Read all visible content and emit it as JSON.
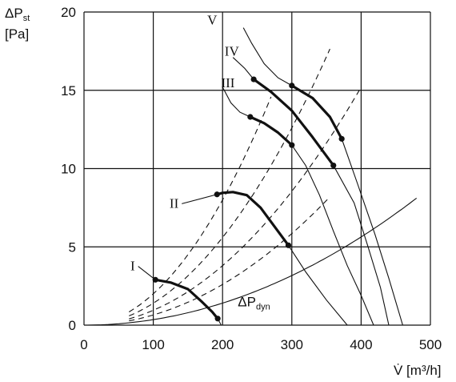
{
  "chart_data": {
    "type": "line",
    "title": "",
    "ylabel": "ΔP",
    "ylabel_sub": "st",
    "ylabel_unit": "[Pa]",
    "xlabel": "V̇ [m³/h]",
    "xlim": [
      0,
      500
    ],
    "ylim": [
      0,
      20
    ],
    "x_ticks": [
      0,
      100,
      200,
      300,
      400,
      500
    ],
    "y_ticks": [
      0,
      5,
      10,
      15,
      20
    ],
    "x_tick_labels": [
      "0",
      "100",
      "200",
      "300",
      "400",
      "500"
    ],
    "y_tick_labels": [
      "0",
      "5",
      "10",
      "15",
      "20"
    ],
    "grid": true,
    "fan_curves": [
      {
        "name": "I",
        "points": [
          [
            103,
            2.9
          ],
          [
            125,
            2.72
          ],
          [
            150,
            2.3
          ],
          [
            170,
            1.5
          ],
          [
            185,
            0.85
          ],
          [
            193,
            0.42
          ],
          [
            198,
            0
          ]
        ],
        "operating_range": [
          [
            103,
            2.9
          ],
          [
            125,
            2.72
          ],
          [
            150,
            2.3
          ],
          [
            170,
            1.5
          ],
          [
            185,
            0.85
          ],
          [
            193,
            0.42
          ]
        ],
        "markers": [
          [
            103,
            2.9
          ],
          [
            193,
            0.42
          ]
        ],
        "label_pos": [
          62,
          3.5
        ]
      },
      {
        "name": "II",
        "points": [
          [
            192,
            8.35
          ],
          [
            200,
            8.45
          ],
          [
            215,
            8.5
          ],
          [
            235,
            8.3
          ],
          [
            255,
            7.5
          ],
          [
            275,
            6.3
          ],
          [
            295,
            5.1
          ],
          [
            320,
            3.4
          ],
          [
            350,
            1.6
          ],
          [
            380,
            0
          ]
        ],
        "operating_range": [
          [
            192,
            8.35
          ],
          [
            200,
            8.45
          ],
          [
            215,
            8.5
          ],
          [
            235,
            8.3
          ],
          [
            255,
            7.5
          ],
          [
            275,
            6.3
          ],
          [
            295,
            5.1
          ]
        ],
        "markers": [
          [
            192,
            8.35
          ],
          [
            295,
            5.1
          ]
        ],
        "label_pos": [
          125,
          7.5
        ]
      },
      {
        "name": "III",
        "points": [
          [
            200,
            15.2
          ],
          [
            212,
            14.2
          ],
          [
            225,
            13.6
          ],
          [
            240,
            13.3
          ],
          [
            260,
            12.9
          ],
          [
            280,
            12.3
          ],
          [
            300,
            11.5
          ],
          [
            320,
            10.2
          ],
          [
            340,
            8.3
          ],
          [
            360,
            6.0
          ],
          [
            380,
            3.8
          ],
          [
            400,
            1.9
          ],
          [
            418,
            0
          ]
        ],
        "operating_range": [
          [
            240,
            13.3
          ],
          [
            260,
            12.9
          ],
          [
            280,
            12.3
          ],
          [
            300,
            11.5
          ]
        ],
        "markers": [
          [
            240,
            13.3
          ],
          [
            300,
            11.5
          ]
        ],
        "label_pos": [
          198,
          15.2
        ]
      },
      {
        "name": "IV",
        "points": [
          [
            215,
            17.1
          ],
          [
            232,
            16.4
          ],
          [
            245,
            15.7
          ],
          [
            270,
            14.9
          ],
          [
            300,
            13.7
          ],
          [
            330,
            12.0
          ],
          [
            360,
            10.2
          ],
          [
            390,
            7.8
          ],
          [
            410,
            5.0
          ],
          [
            428,
            2.4
          ],
          [
            440,
            0
          ]
        ],
        "operating_range": [
          [
            245,
            15.7
          ],
          [
            270,
            14.9
          ],
          [
            300,
            13.7
          ],
          [
            330,
            12.0
          ],
          [
            360,
            10.2
          ]
        ],
        "markers": [
          [
            245,
            15.7
          ],
          [
            360,
            10.2
          ]
        ],
        "label_pos": [
          203,
          17.2
        ]
      },
      {
        "name": "V",
        "points": [
          [
            230,
            19.0
          ],
          [
            242,
            18.0
          ],
          [
            260,
            16.7
          ],
          [
            280,
            15.8
          ],
          [
            300,
            15.3
          ],
          [
            330,
            14.5
          ],
          [
            355,
            13.3
          ],
          [
            372,
            11.9
          ],
          [
            395,
            9.0
          ],
          [
            420,
            5.8
          ],
          [
            440,
            3.0
          ],
          [
            460,
            0
          ]
        ],
        "operating_range": [
          [
            300,
            15.3
          ],
          [
            330,
            14.5
          ],
          [
            355,
            13.3
          ],
          [
            372,
            11.9
          ]
        ],
        "markers": [
          [
            300,
            15.3
          ],
          [
            372,
            11.9
          ]
        ],
        "label_pos": [
          178,
          19.2
        ]
      }
    ],
    "system_curves": [
      {
        "k": 0.0002,
        "x_from": 65,
        "x_to": 270
      },
      {
        "k": 0.00014,
        "x_from": 65,
        "x_to": 355
      },
      {
        "k": 9.5e-05,
        "x_from": 65,
        "x_to": 400
      },
      {
        "k": 6.5e-05,
        "x_from": 65,
        "x_to": 355
      }
    ],
    "dynamic_pressure": {
      "name": "ΔP",
      "name_sub": "dyn",
      "k": 3.52e-05,
      "x_from": 0,
      "x_to": 480,
      "label_pos": [
        222,
        1.2
      ]
    }
  }
}
